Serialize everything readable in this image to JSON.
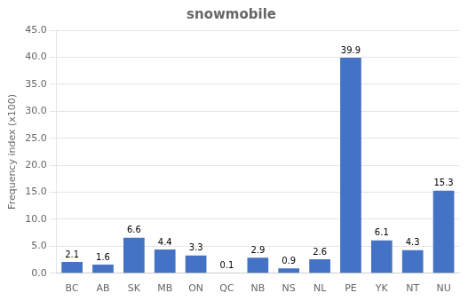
{
  "chart_data": {
    "type": "bar",
    "title": "snowmobile",
    "categories": [
      "BC",
      "AB",
      "SK",
      "MB",
      "ON",
      "QC",
      "NB",
      "NS",
      "NL",
      "PE",
      "YK",
      "NT",
      "NU"
    ],
    "values": [
      2.1,
      1.6,
      6.6,
      4.4,
      3.3,
      0.1,
      2.9,
      0.9,
      2.6,
      39.9,
      6.1,
      4.3,
      15.3
    ],
    "color": "#4472C4",
    "ylabel": "Frequency index (x100)",
    "ylim": [
      0,
      45.0
    ],
    "yticks": [
      {
        "value": 0,
        "label": "0.0"
      },
      {
        "value": 5,
        "label": "5.0"
      },
      {
        "value": 10,
        "label": "10.0"
      },
      {
        "value": 15,
        "label": "15.0"
      },
      {
        "value": 20,
        "label": "20.0"
      },
      {
        "value": 25,
        "label": "25.0"
      },
      {
        "value": 30,
        "label": "30.0"
      },
      {
        "value": 35,
        "label": "35.0"
      },
      {
        "value": 40,
        "label": "40.0"
      },
      {
        "value": 45,
        "label": "45.0"
      }
    ],
    "grid": true,
    "data_labels": true
  }
}
